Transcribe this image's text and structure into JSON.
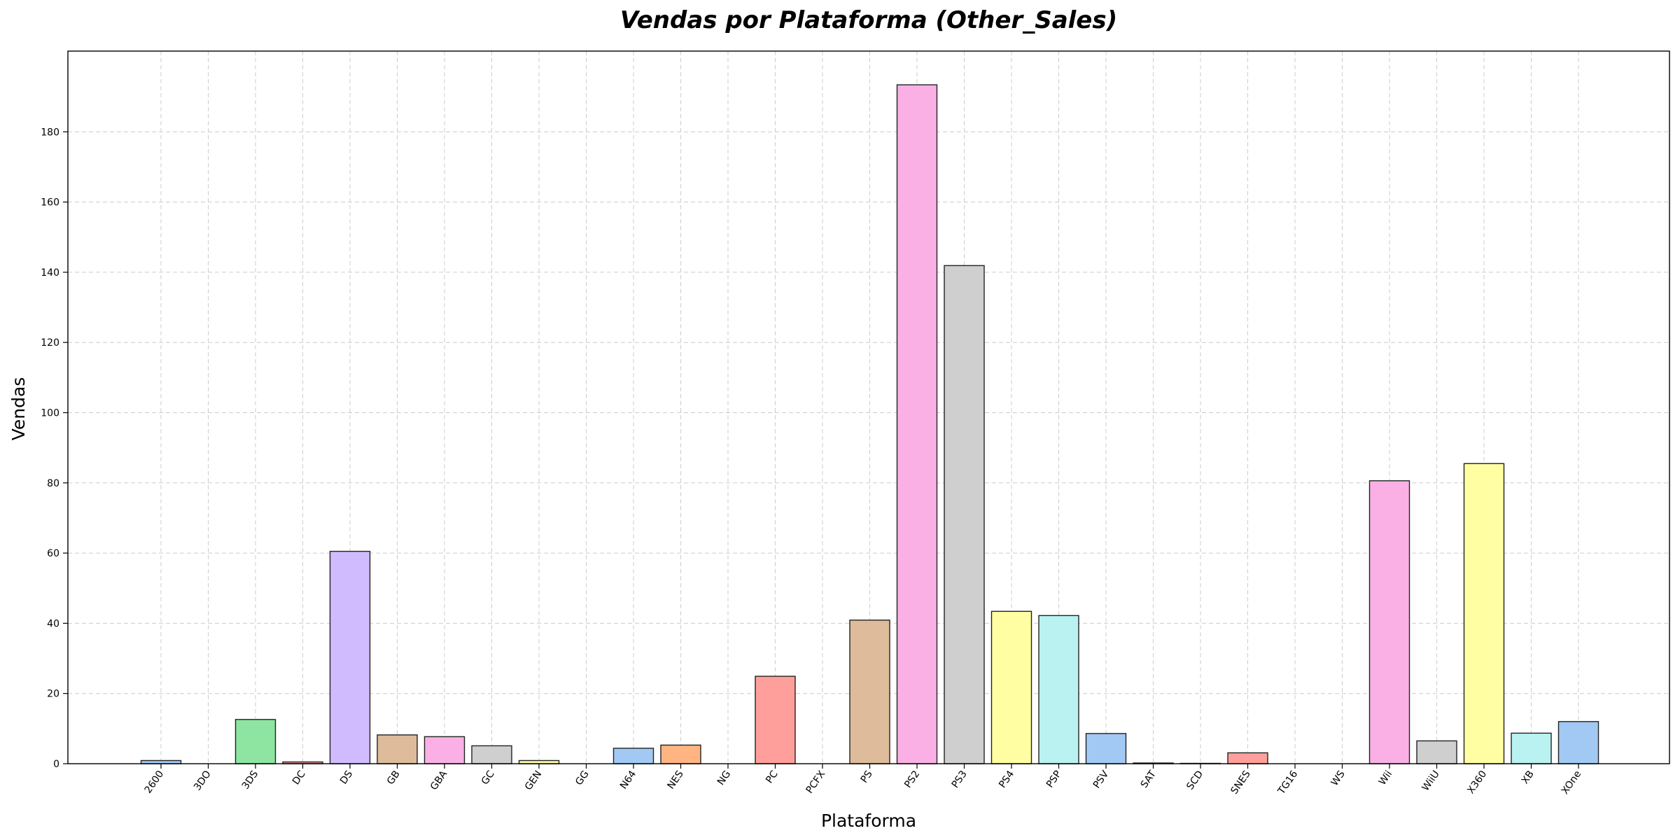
{
  "chart_data": {
    "type": "bar",
    "title": "Vendas por Plataforma (Other_Sales)",
    "xlabel": "Plataforma",
    "ylabel": "Vendas",
    "ylim": [
      0,
      203
    ],
    "yticks": [
      0,
      20,
      40,
      60,
      80,
      100,
      120,
      140,
      160,
      180
    ],
    "grid": true,
    "categories": [
      "2600",
      "3DO",
      "3DS",
      "DC",
      "DS",
      "GB",
      "GBA",
      "GC",
      "GEN",
      "GG",
      "N64",
      "NES",
      "NG",
      "PC",
      "PCFX",
      "PS",
      "PS2",
      "PS3",
      "PS4",
      "PSP",
      "PSV",
      "SAT",
      "SCD",
      "SNES",
      "TG16",
      "WS",
      "Wii",
      "WiiU",
      "X360",
      "XB",
      "XOne"
    ],
    "values": [
      0.9,
      0.0,
      12.6,
      0.5,
      60.5,
      8.2,
      7.7,
      5.1,
      0.9,
      0.0,
      4.4,
      5.3,
      0.0,
      24.9,
      0.0,
      40.9,
      193.4,
      141.9,
      43.4,
      42.2,
      8.6,
      0.2,
      0.1,
      3.1,
      0.0,
      0.0,
      80.6,
      6.5,
      85.5,
      8.7,
      12.0
    ],
    "colors": [
      "#a1c9f4",
      "#ffb482",
      "#8de5a1",
      "#ff9f9b",
      "#d0bbff",
      "#debb9b",
      "#fab0e4",
      "#cfcfcf",
      "#fffea3",
      "#b9f2f0"
    ]
  }
}
